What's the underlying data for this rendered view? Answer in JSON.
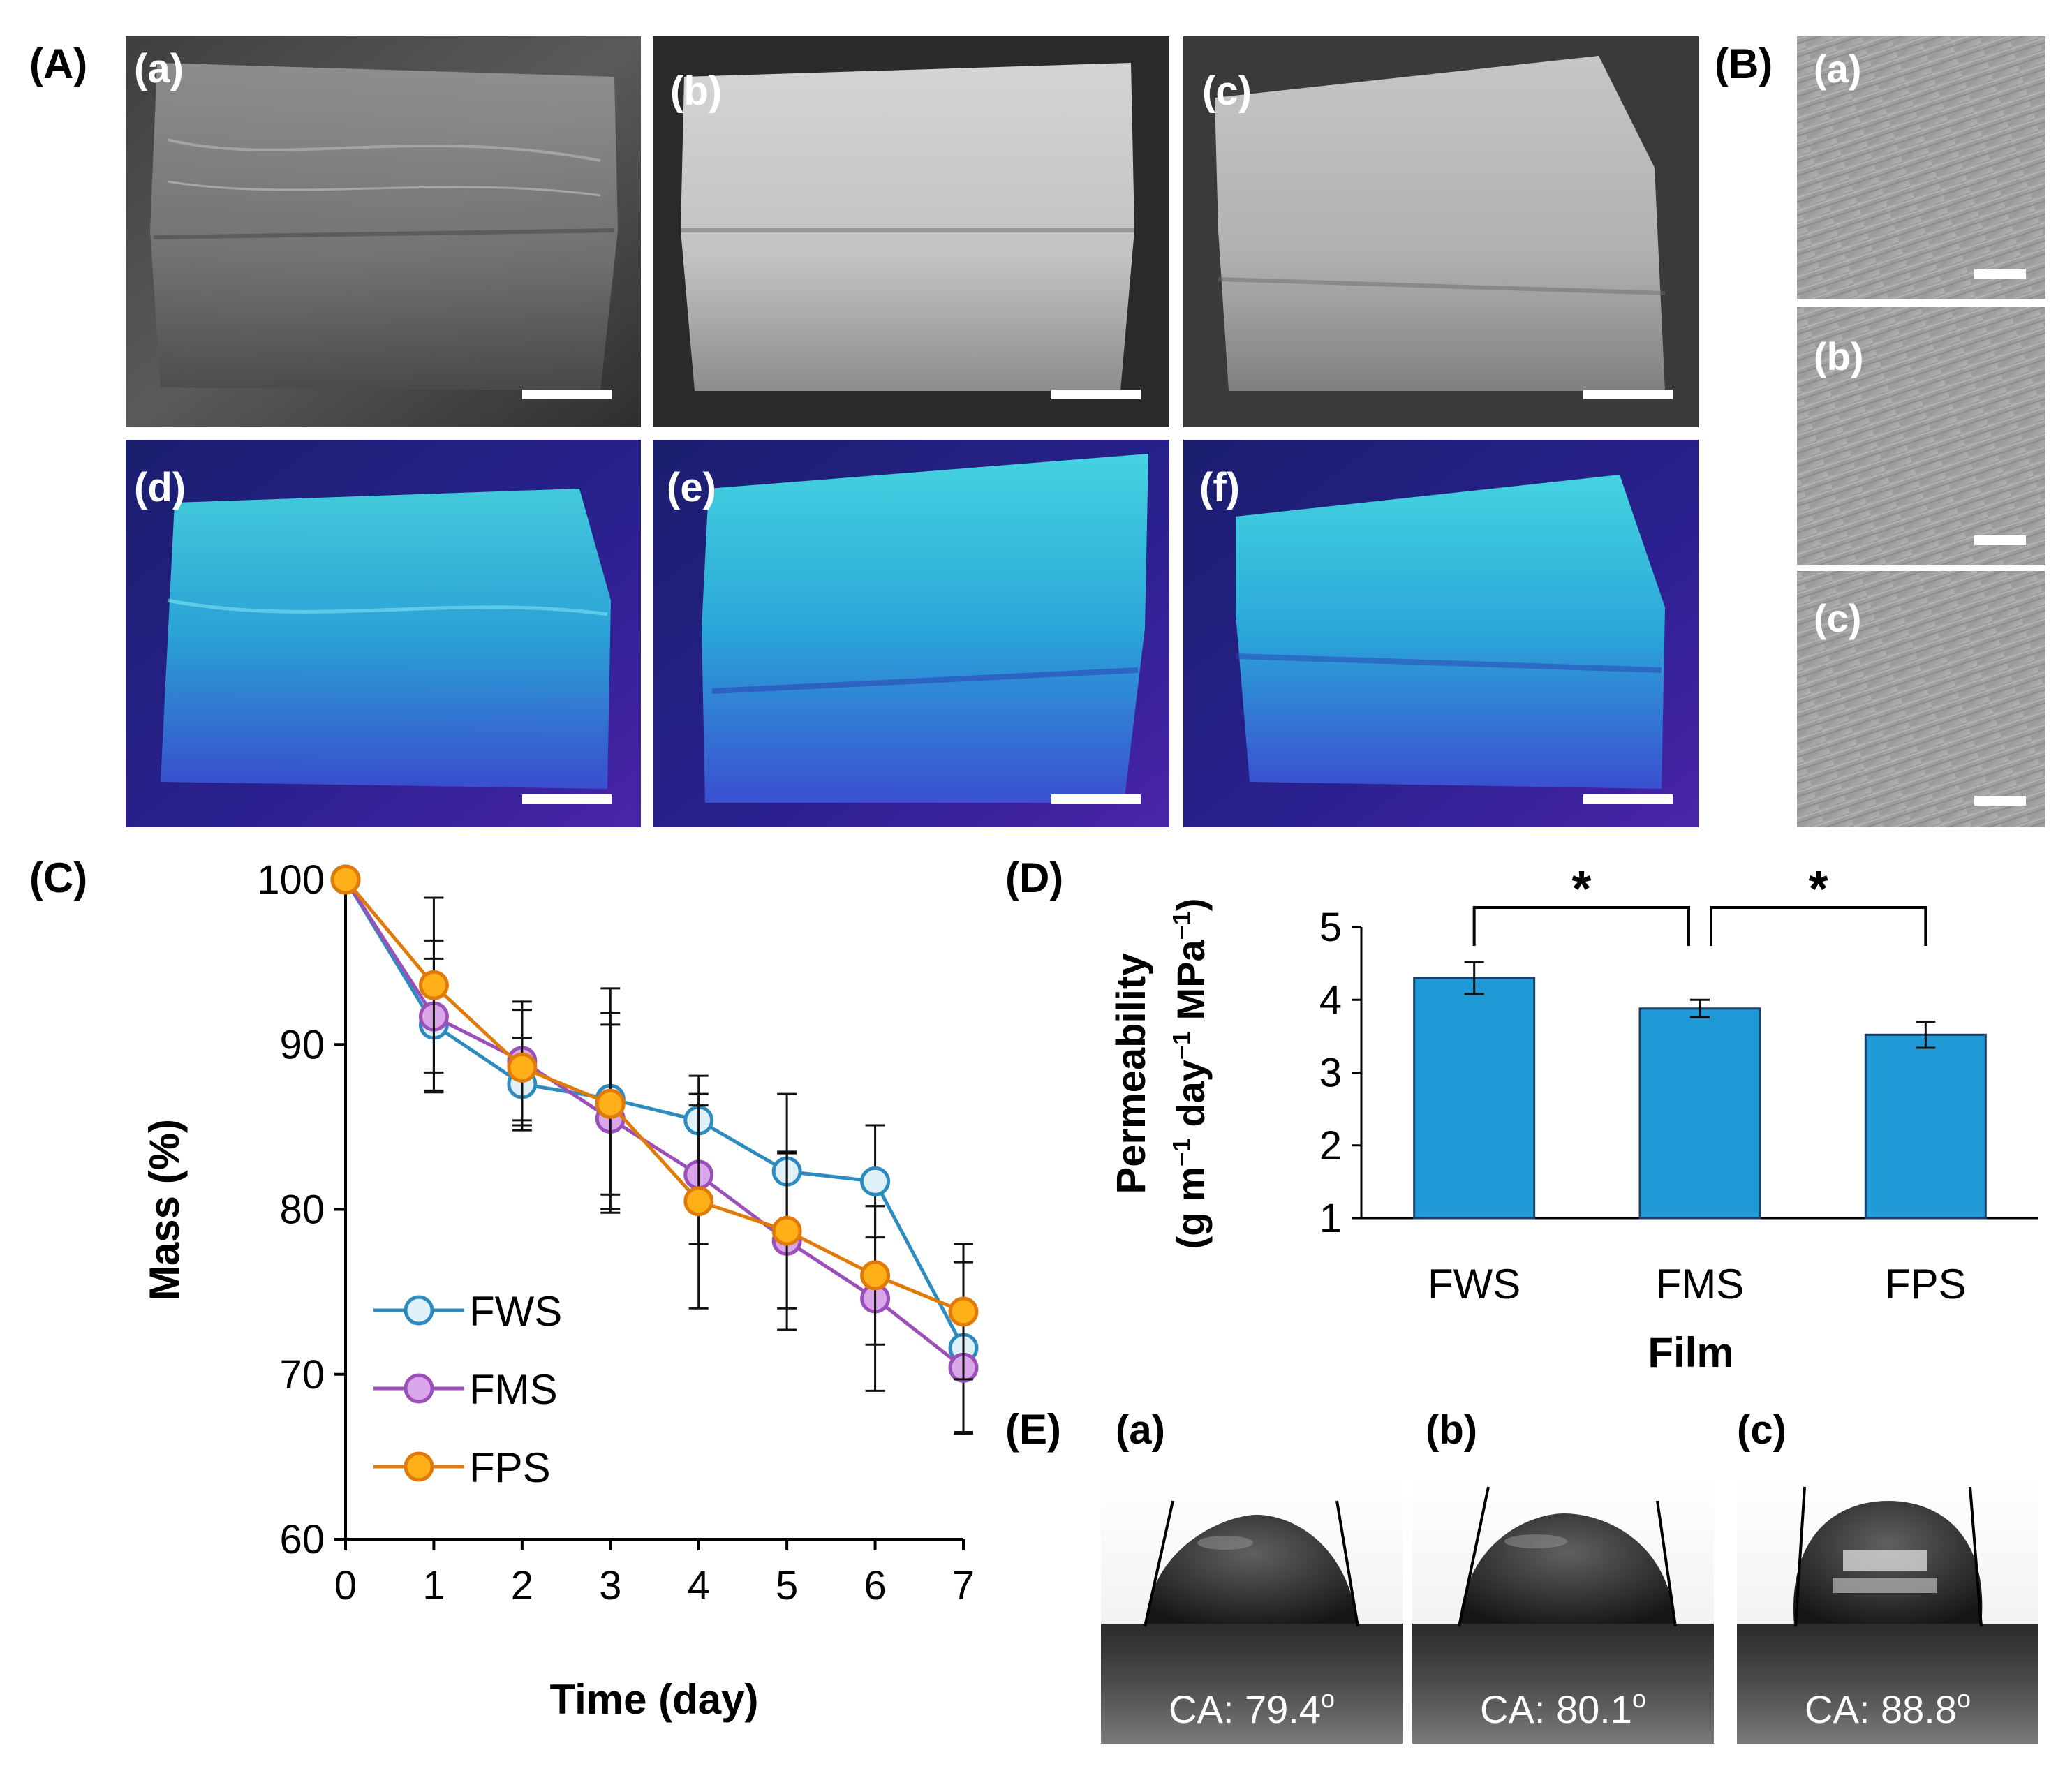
{
  "panel_labels": {
    "A": "(A)",
    "B": "(B)",
    "C": "(C)",
    "D": "(D)",
    "E": "(E)"
  },
  "photo_labels": [
    "(a)",
    "(b)",
    "(c)",
    "(d)",
    "(e)",
    "(f)"
  ],
  "sem_labels": [
    "(a)",
    "(b)",
    "(c)"
  ],
  "ca_labels": [
    "(a)",
    "(b)",
    "(c)"
  ],
  "ca_values": [
    "CA: 79.4°",
    "CA: 80.1°",
    "CA: 88.8°"
  ],
  "ca_texts": [
    "CA: 79.4",
    "CA: 80.1",
    "CA: 88.8"
  ],
  "ca_degree": "o",
  "ca_numeric": [
    79.4,
    80.1,
    88.8
  ],
  "colors": {
    "fws": "#2e8bc0",
    "fws_fill": "#dff0f8",
    "fms": "#9b4fb8",
    "fms_fill": "#d9a6ea",
    "fps": "#e07b0a",
    "fps_fill": "#ffb019",
    "bar": "#1f9ad6",
    "bar_edge": "#1a3f6b"
  },
  "chart_data": [
    {
      "type": "line",
      "panel": "(C)",
      "xlabel": "Time (day)",
      "ylabel": "Mass (%)",
      "x": [
        0,
        1,
        2,
        3,
        4,
        5,
        6,
        7
      ],
      "xlim": [
        0,
        7
      ],
      "ylim": [
        60,
        100
      ],
      "yticks": [
        60,
        70,
        80,
        90,
        100
      ],
      "xticks": [
        0,
        1,
        2,
        3,
        4,
        5,
        6,
        7
      ],
      "legend": "bottom-left",
      "series": [
        {
          "name": "FWS",
          "values": [
            100,
            91.2,
            87.6,
            86.7,
            85.4,
            82.3,
            81.7,
            71.6
          ],
          "errors": [
            0,
            4.0,
            2.8,
            6.7,
            2.7,
            4.7,
            3.4,
            5.2
          ]
        },
        {
          "name": "FMS",
          "values": [
            100,
            91.7,
            89.0,
            85.5,
            82.1,
            78.1,
            74.6,
            70.4
          ],
          "errors": [
            0,
            4.6,
            3.6,
            5.7,
            4.2,
            5.4,
            5.6,
            3.9
          ]
        },
        {
          "name": "FPS",
          "values": [
            100,
            93.6,
            88.6,
            86.4,
            80.5,
            78.7,
            76.0,
            73.8
          ],
          "errors": [
            0,
            5.3,
            3.5,
            5.5,
            6.5,
            4.7,
            4.2,
            4.1
          ]
        }
      ]
    },
    {
      "type": "bar",
      "panel": "(D)",
      "title": "",
      "xlabel": "Film",
      "ylabel_line1": "Permeability",
      "ylabel_line2": "(g m⁻¹ day⁻¹ MPa⁻¹)",
      "ylabel_parts": [
        "(g m",
        "−1",
        " day",
        "−1",
        " MPa",
        "−1",
        ")"
      ],
      "categories": [
        "FWS",
        "FMS",
        "FPS"
      ],
      "values": [
        4.3,
        3.88,
        3.52
      ],
      "errors": [
        0.22,
        0.12,
        0.18
      ],
      "ylim": [
        1,
        5
      ],
      "yticks": [
        1,
        2,
        3,
        4,
        5
      ],
      "significance": [
        {
          "pair": [
            "FWS",
            "FMS"
          ],
          "label": "*"
        },
        {
          "pair": [
            "FMS",
            "FPS"
          ],
          "label": "*"
        }
      ]
    }
  ]
}
